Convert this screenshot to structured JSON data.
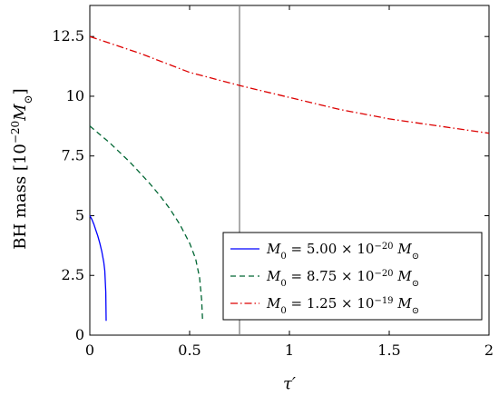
{
  "chart_data": {
    "type": "line",
    "title": "",
    "xlabel": "τ′",
    "ylabel": "BH mass [10⁻²⁰M⊙]",
    "xlim": [
      0,
      2
    ],
    "ylim": [
      0,
      13.8
    ],
    "xticks": [
      0,
      0.5,
      1,
      1.5,
      2
    ],
    "xtick_labels": [
      "0",
      "0.5",
      "1",
      "1.5",
      "2"
    ],
    "yticks": [
      0,
      2.5,
      5,
      7.5,
      10,
      12.5
    ],
    "ytick_labels": [
      "0",
      "2.5",
      "5",
      "7.5",
      "10",
      "12.5"
    ],
    "grid": false,
    "legend_position": "lower-right",
    "vline": {
      "x": 0.75,
      "color": "#808080"
    },
    "series": [
      {
        "name": "M0 = 5.00 × 10⁻²⁰ M⊙",
        "color": "#0000ff",
        "style": "solid",
        "x": [
          0,
          0.01,
          0.02,
          0.03,
          0.04,
          0.05,
          0.06,
          0.07,
          0.075,
          0.08,
          0.082
        ],
        "y": [
          5.0,
          4.85,
          4.65,
          4.4,
          4.15,
          3.85,
          3.5,
          3.05,
          2.7,
          1.8,
          0.6
        ]
      },
      {
        "name": "M0 = 8.75 × 10⁻²⁰ M⊙",
        "color": "#006633",
        "style": "dashed",
        "x": [
          0,
          0.05,
          0.1,
          0.15,
          0.2,
          0.25,
          0.3,
          0.35,
          0.4,
          0.45,
          0.5,
          0.53,
          0.55,
          0.56,
          0.565
        ],
        "y": [
          8.75,
          8.4,
          8.05,
          7.65,
          7.25,
          6.8,
          6.35,
          5.85,
          5.3,
          4.65,
          3.85,
          3.2,
          2.4,
          1.5,
          0.6
        ]
      },
      {
        "name": "M0 = 1.25 × 10⁻¹⁹ M⊙",
        "color": "#dd0000",
        "style": "dashdot",
        "x": [
          0,
          0.25,
          0.5,
          0.75,
          1.0,
          1.25,
          1.5,
          1.75,
          2.0
        ],
        "y": [
          12.5,
          11.8,
          11.0,
          10.45,
          9.95,
          9.45,
          9.05,
          8.75,
          8.45
        ]
      }
    ],
    "legend": [
      {
        "prefix": "M",
        "sub": "0",
        "mid": " = 5.00 × 10",
        "sup": "−20",
        "unit": "M",
        "unitsub": "⊙"
      },
      {
        "prefix": "M",
        "sub": "0",
        "mid": " = 8.75 × 10",
        "sup": "−20",
        "unit": "M",
        "unitsub": "⊙"
      },
      {
        "prefix": "M",
        "sub": "0",
        "mid": " = 1.25 × 10",
        "sup": "−19",
        "unit": "M",
        "unitsub": "⊙"
      }
    ]
  }
}
